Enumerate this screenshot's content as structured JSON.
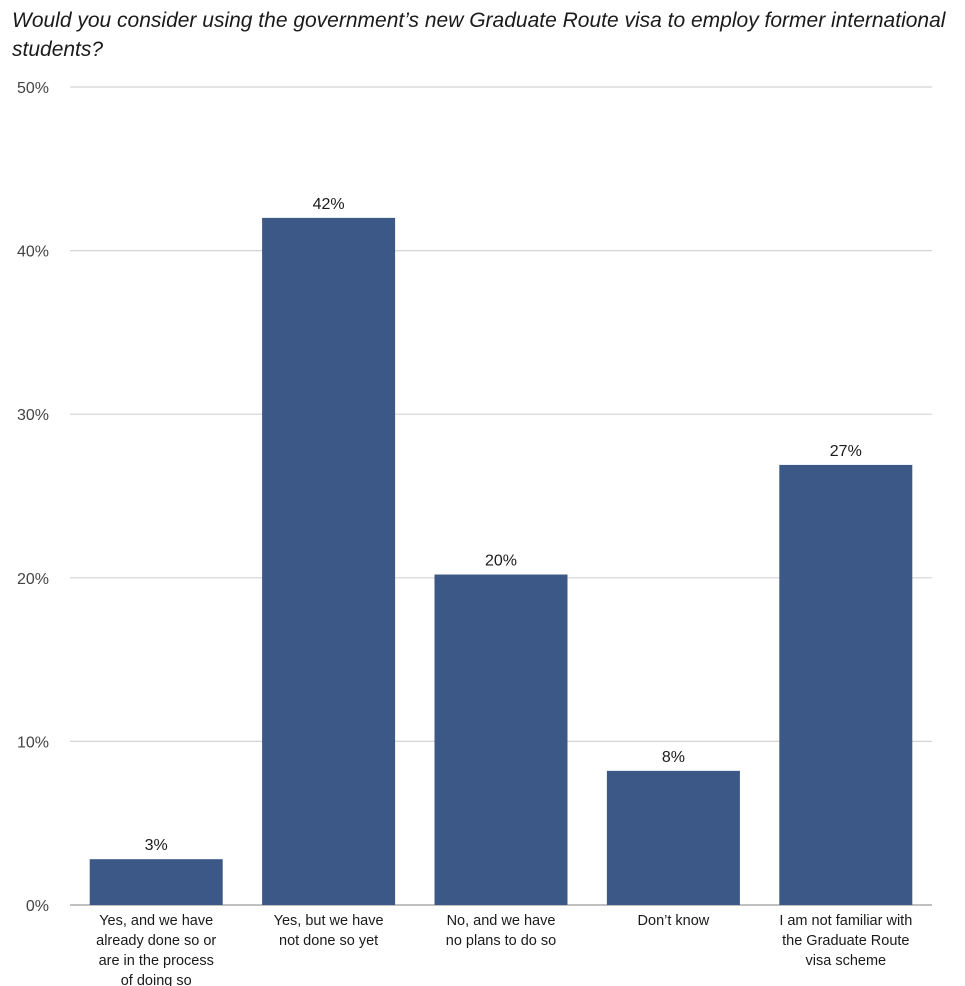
{
  "chart_data": {
    "type": "bar",
    "title": "Would you consider using the government’s new Graduate Route visa to employ former international students?",
    "categories": [
      [
        "Yes, and we have",
        "already done so or",
        "are in the process",
        "of doing so"
      ],
      [
        "Yes, but we have",
        "not done so yet"
      ],
      [
        "No, and we have",
        "no plans to do so"
      ],
      [
        "Don’t know"
      ],
      [
        "I am not familiar with",
        "the Graduate Route",
        "visa scheme"
      ]
    ],
    "values": [
      2.8,
      42,
      20.2,
      8.2,
      26.9
    ],
    "data_labels": [
      "3%",
      "42%",
      "20%",
      "8%",
      "27%"
    ],
    "xlabel": "",
    "ylabel": "",
    "ylim": [
      0,
      50
    ],
    "yticks": [
      0,
      10,
      20,
      30,
      40,
      50
    ],
    "ytick_labels": [
      "0%",
      "10%",
      "20%",
      "30%",
      "40%",
      "50%"
    ],
    "grid": true,
    "legend": "none",
    "colors": {
      "bar": "#3b5886",
      "grid": "#d4d4d4",
      "axis": "#9a9a9a"
    }
  }
}
